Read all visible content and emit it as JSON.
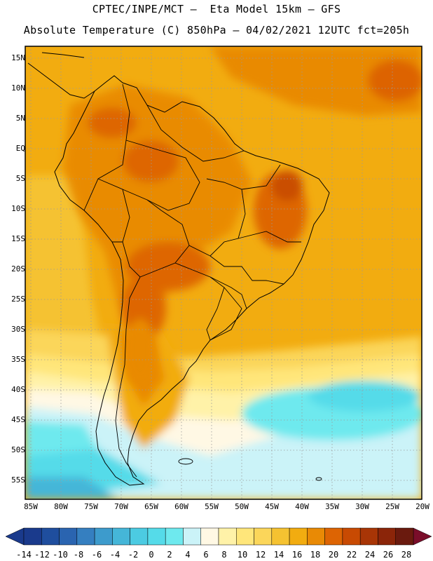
{
  "header": {
    "line1": "CPTEC/INPE/MCT –  Eta Model 15km – GFS",
    "line2": "Absolute Temperature (C) 850hPa – 04/02/2021 12UTC fct=205h"
  },
  "map": {
    "lat_labels": [
      "15N",
      "10N",
      "5N",
      "EQ",
      "5S",
      "10S",
      "15S",
      "20S",
      "25S",
      "30S",
      "35S",
      "40S",
      "45S",
      "50S",
      "55S"
    ],
    "lon_labels": [
      "85W",
      "80W",
      "75W",
      "70W",
      "65W",
      "60W",
      "55W",
      "50W",
      "45W",
      "40W",
      "35W",
      "30W",
      "25W",
      "20W"
    ]
  },
  "colorbar": {
    "labels": [
      "-14",
      "-12",
      "-10",
      "-8",
      "-6",
      "-4",
      "-2",
      "0",
      "2",
      "4",
      "6",
      "8",
      "10",
      "12",
      "14",
      "16",
      "18",
      "20",
      "22",
      "24",
      "26",
      "28"
    ],
    "colors": [
      "#1a3a8c",
      "#1f4e9e",
      "#2a64b0",
      "#357fc0",
      "#3d9bcc",
      "#45b6d8",
      "#4ccbe2",
      "#55dbe9",
      "#6ee9ee",
      "#cbf3f8",
      "#fff8e4",
      "#fff2a8",
      "#ffe67a",
      "#fbd65a",
      "#f5c231",
      "#f2ac10",
      "#e98a05",
      "#dd6403",
      "#c84a02",
      "#a83506",
      "#8b2509",
      "#6a1a0e"
    ]
  }
}
